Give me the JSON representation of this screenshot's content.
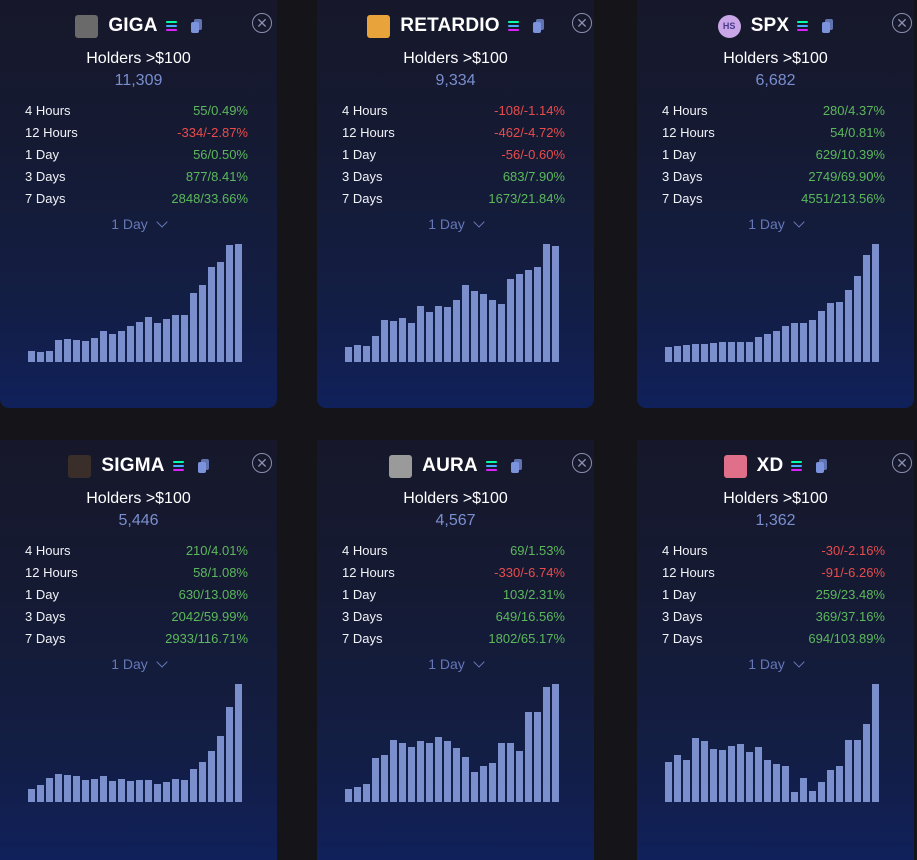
{
  "labels": {
    "holders_title": "Holders >$100",
    "period_labels": [
      "4 Hours",
      "12 Hours",
      "1 Day",
      "3 Days",
      "7 Days"
    ],
    "close_glyph": "✕"
  },
  "colors": {
    "positive": "#5cb85c",
    "negative": "#e94c4c",
    "bar": "#7b8fcc",
    "value": "#7a8fce",
    "solana_gradient": [
      "#00ffa3",
      "#4fa8ff",
      "#dc1fff"
    ]
  },
  "tokens": [
    {
      "ticker": "GIGA",
      "avatar": "grayscale-photo",
      "avatar_bg": "#6a6a6a",
      "avatar_text": "",
      "holders": "11,309",
      "selected_range": "1 Day",
      "stats": [
        {
          "value": "55/0.49%",
          "dir": "pos"
        },
        {
          "value": "-334/-2.87%",
          "dir": "neg"
        },
        {
          "value": "56/0.50%",
          "dir": "pos"
        },
        {
          "value": "877/8.41%",
          "dir": "pos"
        },
        {
          "value": "2848/33.66%",
          "dir": "pos"
        }
      ],
      "bars": [
        33,
        30,
        33,
        66,
        69,
        66,
        63,
        72,
        93,
        84,
        93,
        108,
        120,
        135,
        117,
        129,
        141,
        141,
        207,
        231,
        285,
        300,
        351,
        354
      ]
    },
    {
      "ticker": "RETARDIO",
      "avatar": "cartoon-character",
      "avatar_bg": "#e8a43a",
      "avatar_text": "",
      "holders": "9,334",
      "selected_range": "1 Day",
      "stats": [
        {
          "value": "-108/-1.14%",
          "dir": "neg"
        },
        {
          "value": "-462/-4.72%",
          "dir": "neg"
        },
        {
          "value": "-56/-0.60%",
          "dir": "neg"
        },
        {
          "value": "683/7.90%",
          "dir": "pos"
        },
        {
          "value": "1673/21.84%",
          "dir": "pos"
        }
      ],
      "bars": [
        45,
        51,
        48,
        78,
        126,
        123,
        132,
        117,
        168,
        150,
        168,
        165,
        186,
        231,
        213,
        204,
        186,
        174,
        249,
        264,
        276,
        285,
        354,
        348
      ]
    },
    {
      "ticker": "SPX",
      "avatar": "hs-logo",
      "avatar_bg": "#c9a6e8",
      "avatar_text": "HS",
      "holders": "6,682",
      "selected_range": "1 Day",
      "stats": [
        {
          "value": "280/4.37%",
          "dir": "pos"
        },
        {
          "value": "54/0.81%",
          "dir": "pos"
        },
        {
          "value": "629/10.39%",
          "dir": "pos"
        },
        {
          "value": "2749/69.90%",
          "dir": "pos"
        },
        {
          "value": "4551/213.56%",
          "dir": "pos"
        }
      ],
      "bars": [
        45,
        48,
        51,
        54,
        54,
        57,
        60,
        60,
        60,
        60,
        75,
        84,
        93,
        108,
        117,
        117,
        126,
        153,
        177,
        180,
        216,
        258,
        321,
        354
      ]
    },
    {
      "ticker": "SIGMA",
      "avatar": "man-portrait",
      "avatar_bg": "#3a2e2a",
      "avatar_text": "",
      "holders": "5,446",
      "selected_range": "1 Day",
      "stats": [
        {
          "value": "210/4.01%",
          "dir": "pos"
        },
        {
          "value": "58/1.08%",
          "dir": "pos"
        },
        {
          "value": "630/13.08%",
          "dir": "pos"
        },
        {
          "value": "2042/59.99%",
          "dir": "pos"
        },
        {
          "value": "2933/116.71%",
          "dir": "pos"
        }
      ],
      "bars": [
        39,
        51,
        72,
        84,
        81,
        78,
        66,
        69,
        78,
        63,
        69,
        63,
        66,
        66,
        54,
        60,
        69,
        66,
        99,
        120,
        153,
        198,
        285,
        354
      ]
    },
    {
      "ticker": "AURA",
      "avatar": "grayscale-abstract",
      "avatar_bg": "#9a9a9a",
      "avatar_text": "",
      "holders": "4,567",
      "selected_range": "1 Day",
      "stats": [
        {
          "value": "69/1.53%",
          "dir": "pos"
        },
        {
          "value": "-330/-6.74%",
          "dir": "neg"
        },
        {
          "value": "103/2.31%",
          "dir": "pos"
        },
        {
          "value": "649/16.56%",
          "dir": "pos"
        },
        {
          "value": "1802/65.17%",
          "dir": "pos"
        }
      ],
      "bars": [
        39,
        45,
        54,
        132,
        141,
        186,
        177,
        165,
        183,
        177,
        195,
        183,
        162,
        135,
        90,
        108,
        117,
        177,
        177,
        153,
        270,
        270,
        345,
        354
      ]
    },
    {
      "ticker": "XD",
      "avatar": "anime-girl",
      "avatar_bg": "#e0708a",
      "avatar_text": "",
      "holders": "1,362",
      "selected_range": "1 Day",
      "stats": [
        {
          "value": "-30/-2.16%",
          "dir": "neg"
        },
        {
          "value": "-91/-6.26%",
          "dir": "neg"
        },
        {
          "value": "259/23.48%",
          "dir": "pos"
        },
        {
          "value": "369/37.16%",
          "dir": "pos"
        },
        {
          "value": "694/103.89%",
          "dir": "pos"
        }
      ],
      "bars": [
        120,
        141,
        126,
        192,
        183,
        159,
        156,
        168,
        174,
        150,
        165,
        126,
        114,
        108,
        30,
        72,
        33,
        60,
        96,
        108,
        186,
        186,
        234,
        354
      ]
    }
  ]
}
